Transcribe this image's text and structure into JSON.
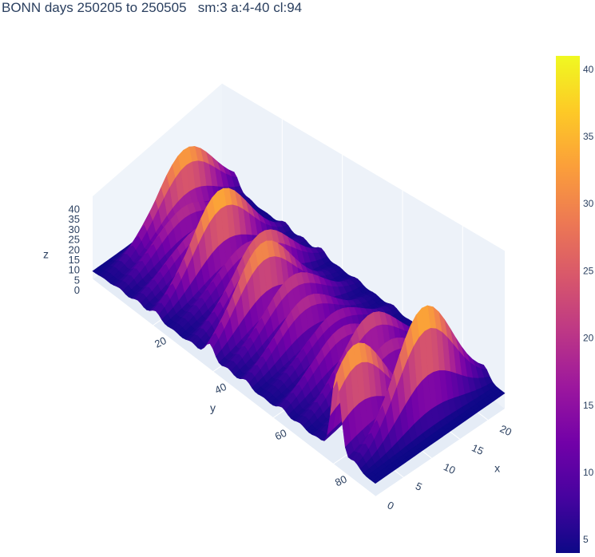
{
  "chart_data": {
    "type": "surface",
    "title": "BONN days 250205 to 250505   sm:3 a:4-40 cl:94",
    "x_axis": {
      "label": "x",
      "ticks": [
        0,
        5,
        10,
        15,
        20
      ],
      "range": [
        0,
        23
      ]
    },
    "y_axis": {
      "label": "y",
      "ticks": [
        20,
        40,
        60,
        80
      ],
      "range": [
        0,
        94
      ]
    },
    "z_axis": {
      "label": "z",
      "ticks": [
        0,
        5,
        10,
        15,
        20,
        25,
        30,
        35,
        40
      ],
      "range": [
        0,
        41
      ]
    },
    "colorbar": {
      "ticks": [
        5,
        10,
        15,
        20,
        25,
        30,
        35,
        40
      ],
      "range": [
        4,
        41
      ]
    },
    "colorscale": [
      "#0d0887",
      "#46039f",
      "#7201a8",
      "#9c179e",
      "#bd3786",
      "#d8576b",
      "#ed7953",
      "#fb9f3a",
      "#fdca26",
      "#f0f921"
    ],
    "ridges": [
      {
        "y": 4,
        "peak_x": 14,
        "value": 38
      },
      {
        "y": 9,
        "peak_x": 11,
        "value": 22
      },
      {
        "y": 15,
        "peak_x": 10,
        "value": 20
      },
      {
        "y": 21,
        "peak_x": 11,
        "value": 40
      },
      {
        "y": 27,
        "peak_x": 12,
        "value": 20
      },
      {
        "y": 33,
        "peak_x": 12,
        "value": 30
      },
      {
        "y": 39,
        "peak_x": 9,
        "value": 36
      },
      {
        "y": 45,
        "peak_x": 11,
        "value": 24
      },
      {
        "y": 51,
        "peak_x": 10,
        "value": 22
      },
      {
        "y": 57,
        "peak_x": 12,
        "value": 18
      },
      {
        "y": 63,
        "peak_x": 10,
        "value": 20
      },
      {
        "y": 69,
        "peak_x": 12,
        "value": 26
      },
      {
        "y": 75,
        "peak_x": 12,
        "value": 21
      },
      {
        "y": 81,
        "peak_x": 3,
        "value": 38
      },
      {
        "y": 87,
        "peak_x": 12,
        "value": 40
      }
    ],
    "grid": true,
    "legend": "right"
  }
}
